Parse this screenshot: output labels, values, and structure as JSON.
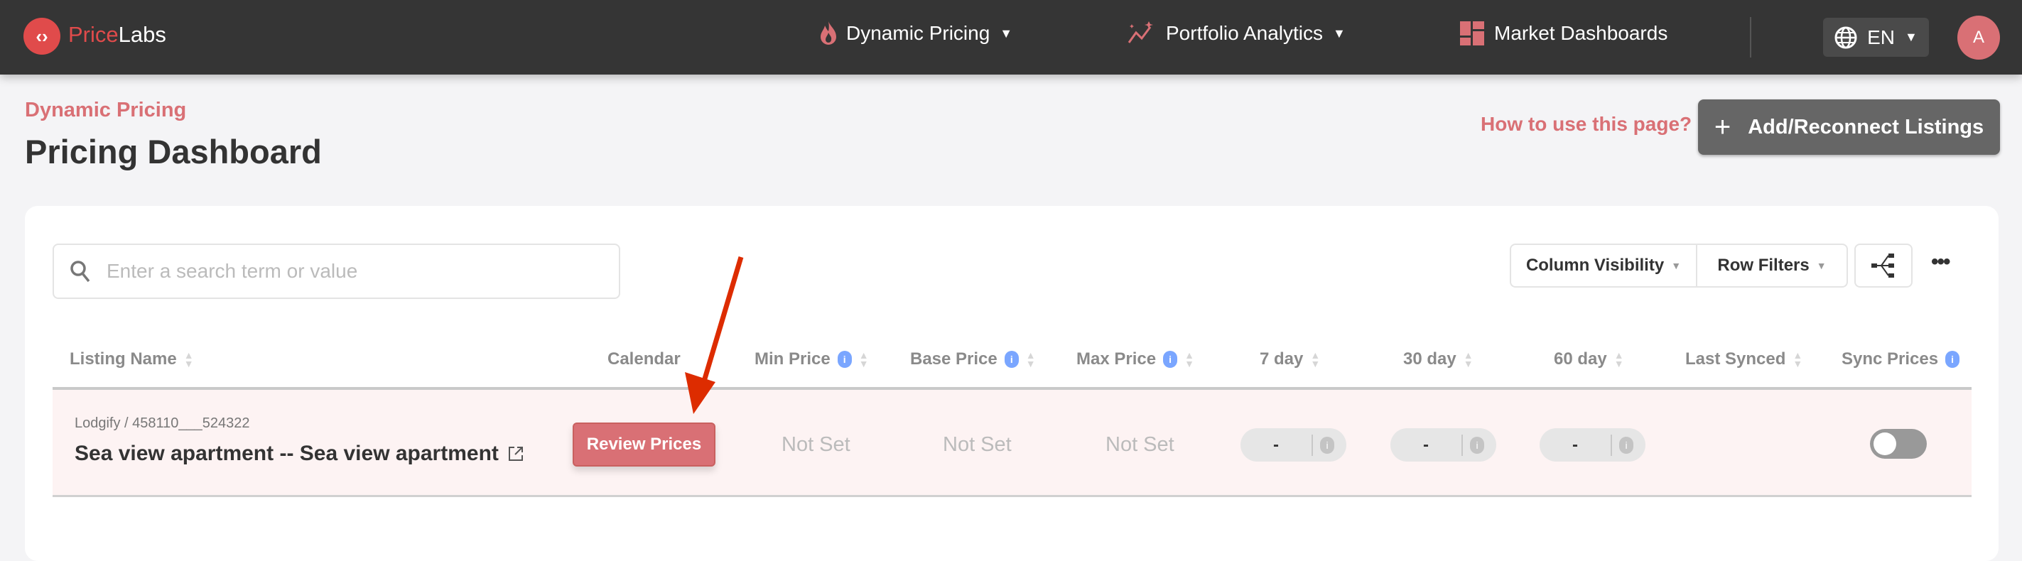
{
  "brand": {
    "name_part1": "Price",
    "name_part2": "Labs",
    "accent": "#e04b4b"
  },
  "nav": {
    "items": [
      {
        "label": "Dynamic Pricing",
        "icon": "flame-icon",
        "dropdown": true
      },
      {
        "label": "Portfolio Analytics",
        "icon": "sparkle-trend-icon",
        "dropdown": true
      },
      {
        "label": "Market Dashboards",
        "icon": "dashboard-grid-icon",
        "dropdown": false
      }
    ],
    "language": "EN",
    "avatar_initial": "A"
  },
  "page": {
    "breadcrumb": "Dynamic Pricing",
    "title": "Pricing Dashboard",
    "help_link": "How to use this page?",
    "add_button": "Add/Reconnect Listings"
  },
  "toolbar": {
    "search_placeholder": "Enter a search term or value",
    "column_visibility": "Column Visibility",
    "row_filters": "Row Filters"
  },
  "table": {
    "columns": [
      "Listing Name",
      "Calendar",
      "Min Price",
      "Base Price",
      "Max Price",
      "7 day",
      "30 day",
      "60 day",
      "Last Synced",
      "Sync Prices"
    ],
    "rows": [
      {
        "source": "Lodgify / 458110___524322",
        "name": "Sea view apartment -- Sea view apartment",
        "calendar_button": "Review Prices",
        "min_price": "Not Set",
        "base_price": "Not Set",
        "max_price": "Not Set",
        "day7": "-",
        "day30": "-",
        "day60": "-",
        "last_synced": "",
        "sync_prices": false
      }
    ]
  },
  "annotation": {
    "arrow_color": "#dd2c00"
  }
}
